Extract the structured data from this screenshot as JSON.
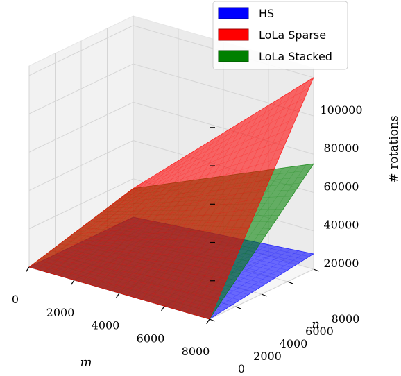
{
  "chart_data": {
    "type": "surface",
    "xlabel": "m",
    "ylabel": "n",
    "zlabel": "# rotations",
    "x_ticks": [
      "0",
      "2000",
      "4000",
      "6000",
      "8000"
    ],
    "y_ticks": [
      "0",
      "2000",
      "4000",
      "6000",
      "8000"
    ],
    "z_ticks": [
      "20000",
      "40000",
      "60000",
      "80000",
      "100000"
    ],
    "xlim": [
      0,
      8000
    ],
    "ylim": [
      0,
      8000
    ],
    "zlim": [
      0,
      105000
    ],
    "grid": true,
    "legend_position": "top-right",
    "series": [
      {
        "name": "HS",
        "color": "#0000ff",
        "corners": {
          "m0_n0": 0,
          "m8000_n0": 0,
          "m0_n8000": 0,
          "m8000_n8000": 8000
        }
      },
      {
        "name": "LoLa Sparse",
        "color": "#ff0000",
        "corners": {
          "m0_n0": 0,
          "m8000_n0": 0,
          "m0_n8000": 15000,
          "m8000_n8000": 100000
        }
      },
      {
        "name": "LoLa Stacked",
        "color": "#008000",
        "corners": {
          "m0_n0": 0,
          "m8000_n0": 0,
          "m0_n8000": 15000,
          "m8000_n8000": 55000
        }
      }
    ]
  }
}
